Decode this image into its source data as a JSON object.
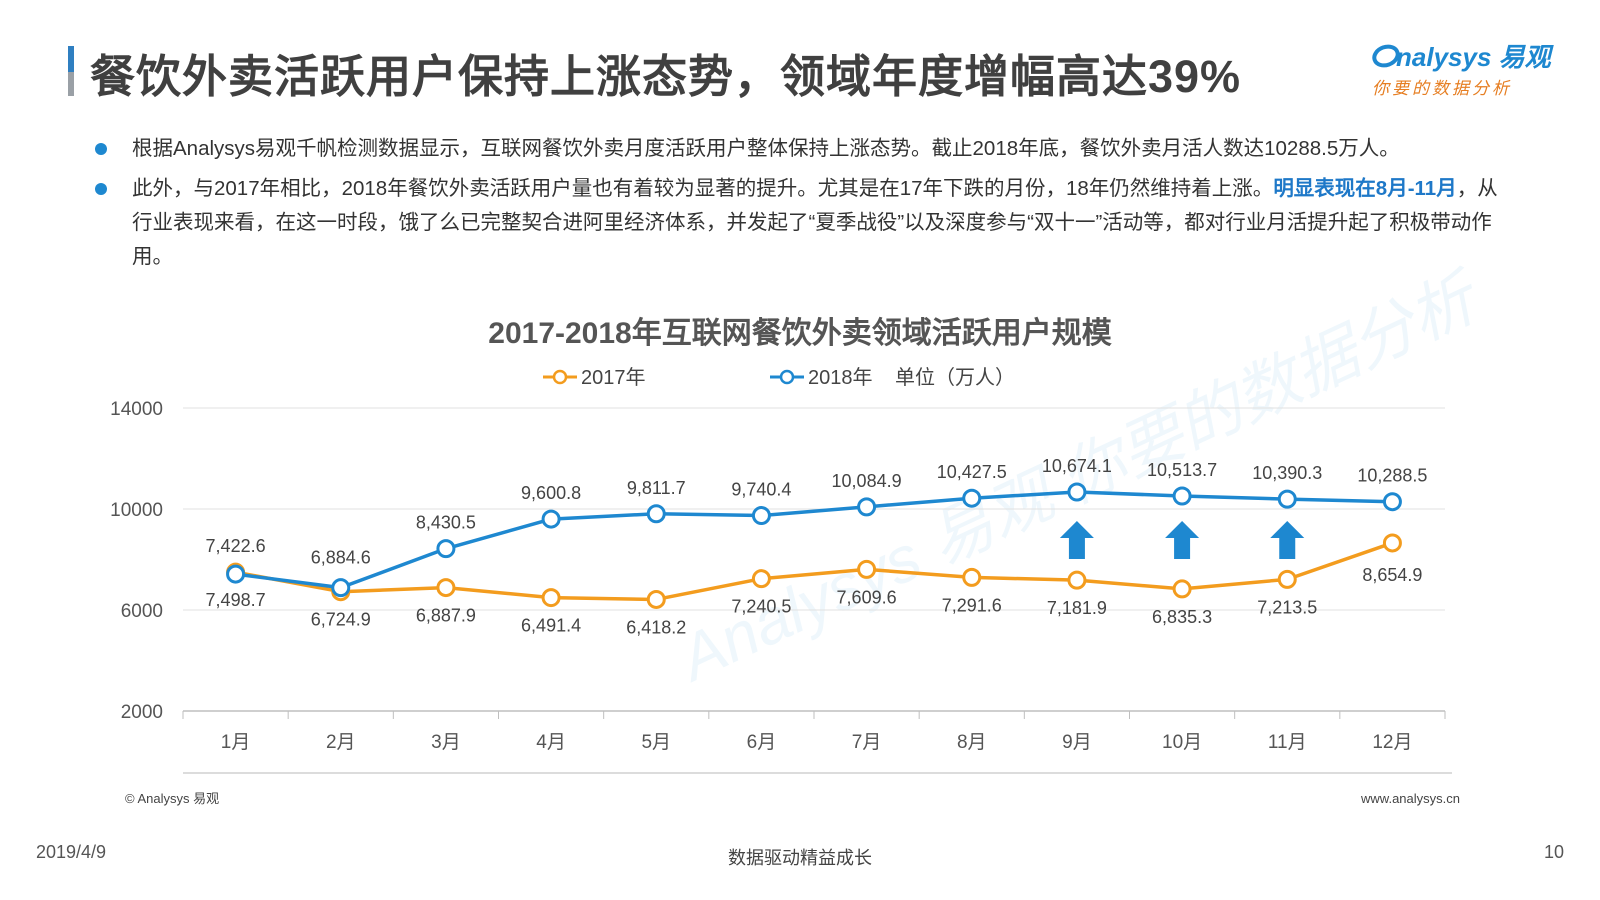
{
  "header": {
    "title": "餐饮外卖活跃用户保持上涨态势，领域年度增幅高达39%",
    "logo_brand": "nalysys 易观",
    "logo_slogan": "你要的数据分析"
  },
  "bullets": [
    {
      "text": "根据Analysys易观千帆检测数据显示，互联网餐饮外卖月度活跃用户整体保持上涨态势。截止2018年底，餐饮外卖月活人数达10288.5万人。"
    },
    {
      "text_before": "此外，与2017年相比，2018年餐饮外卖活跃用户量也有着较为显著的提升。尤其是在17年下跌的月份，18年仍然维持着上涨。",
      "highlight": "明显表现在8月-11月",
      "text_after": "，从行业表现来看，在这一时段，饿了么已完整契合进阿里经济体系，并发起了“夏季战役”以及深度参与“双十一”活动等，都对行业月活提升起了积极带动作用。"
    }
  ],
  "chart_data": {
    "type": "line",
    "title": "2017-2018年互联网餐饮外卖领域活跃用户规模",
    "unit_label": "单位（万人）",
    "categories": [
      "1月",
      "2月",
      "3月",
      "4月",
      "5月",
      "6月",
      "7月",
      "8月",
      "9月",
      "10月",
      "11月",
      "12月"
    ],
    "series": [
      {
        "name": "2017年",
        "color": "#f39c1e",
        "values": [
          7498.7,
          6724.9,
          6887.9,
          6491.4,
          6418.2,
          7240.5,
          7609.6,
          7291.6,
          7181.9,
          6835.3,
          7213.5,
          8654.9
        ],
        "labels": [
          "7,498.7",
          "6,724.9",
          "6,887.9",
          "6,491.4",
          "6,418.2",
          "7,240.5",
          "7,609.6",
          "7,291.6",
          "7,181.9",
          "6,835.3",
          "7,213.5",
          "8,654.9"
        ]
      },
      {
        "name": "2018年",
        "color": "#1e88d0",
        "values": [
          7422.6,
          6884.6,
          8430.5,
          9600.8,
          9811.7,
          9740.4,
          10084.9,
          10427.5,
          10674.1,
          10513.7,
          10390.3,
          10288.5
        ],
        "labels": [
          "7,422.6",
          "6,884.6",
          "8,430.5",
          "9,600.8",
          "9,811.7",
          "9,740.4",
          "10,084.9",
          "10,427.5",
          "10,674.1",
          "10,513.7",
          "10,390.3",
          "10,288.5"
        ]
      }
    ],
    "yticks": [
      "14000",
      "10000",
      "6000",
      "2000"
    ],
    "ylim": [
      2000,
      14000
    ],
    "grid": true,
    "legend_position": "top",
    "arrow_months": [
      "9月",
      "10月",
      "11月"
    ],
    "arrow_color": "#1e88d0"
  },
  "source": {
    "left": "© Analysys 易观",
    "right": "www.analysys.cn"
  },
  "footer": {
    "date": "2019/4/9",
    "slogan": "数据驱动精益成长",
    "page": "10"
  },
  "watermark": {
    "text": "Analysys 易观 你要的数据分析"
  }
}
